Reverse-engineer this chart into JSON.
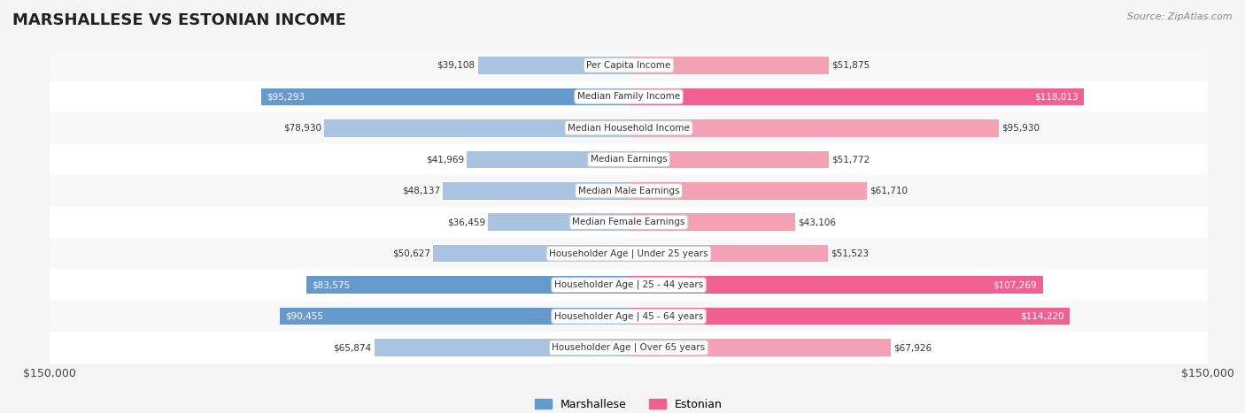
{
  "title": "MARSHALLESE VS ESTONIAN INCOME",
  "source": "Source: ZipAtlas.com",
  "categories": [
    "Per Capita Income",
    "Median Family Income",
    "Median Household Income",
    "Median Earnings",
    "Median Male Earnings",
    "Median Female Earnings",
    "Householder Age | Under 25 years",
    "Householder Age | 25 - 44 years",
    "Householder Age | 45 - 64 years",
    "Householder Age | Over 65 years"
  ],
  "marshallese_values": [
    39108,
    95293,
    78930,
    41969,
    48137,
    36459,
    50627,
    83575,
    90455,
    65874
  ],
  "estonian_values": [
    51875,
    118013,
    95930,
    51772,
    61710,
    43106,
    51523,
    107269,
    114220,
    67926
  ],
  "max_value": 150000,
  "blue_light": "#a8c4e0",
  "blue_dark": "#6699cc",
  "pink_light": "#f4a0b5",
  "pink_dark": "#f06090",
  "bar_bg": "#f0f0f0",
  "row_bg_even": "#f8f8f8",
  "row_bg_odd": "#ffffff",
  "label_box_bg": "#ffffff",
  "label_box_border": "#cccccc",
  "title_color": "#222222",
  "axis_label_color": "#444444",
  "value_text_dark": "#333333",
  "value_text_white": "#ffffff",
  "bar_height": 0.55,
  "marshallese_high_threshold": 80000,
  "estonian_high_threshold": 100000
}
